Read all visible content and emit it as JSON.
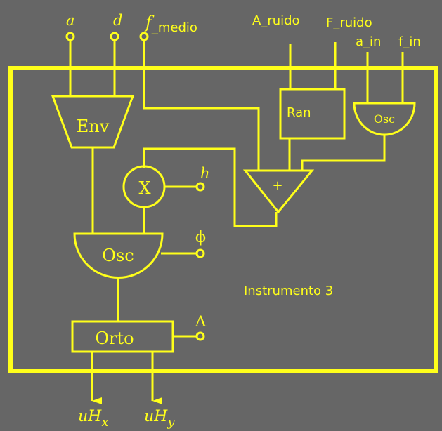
{
  "colors": {
    "background": "#666666",
    "stroke": "#ffff1a"
  },
  "inputs": {
    "a": "a",
    "d": "d",
    "f_medio_base": "f",
    "f_medio_sub": "_medio",
    "a_ruido": "A_ruido",
    "f_ruido": "F_ruido",
    "a_in": "a_in",
    "f_in": "f_in",
    "h": "h",
    "phi": "ϕ",
    "lambda": "Λ"
  },
  "blocks": {
    "env": "Env",
    "mult": "X",
    "osc_main": "Osc",
    "osc_small": "Osc",
    "ran": "Ran",
    "adder": "+",
    "orto": "Orto"
  },
  "title": "Instrumento 3",
  "outputs": {
    "uhx_base": "uH",
    "uhx_sub": "x",
    "uhy_base": "uH",
    "uhy_sub": "y"
  }
}
